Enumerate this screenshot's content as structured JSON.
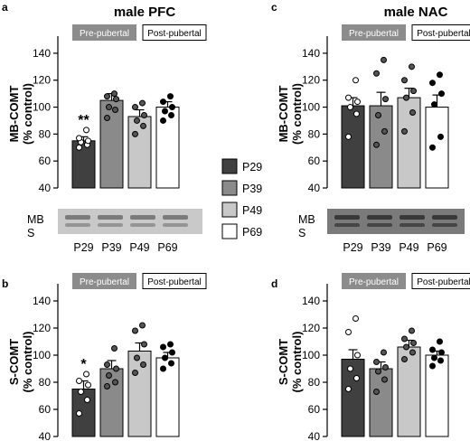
{
  "colors": {
    "P29": "#404040",
    "P39": "#8a8a8a",
    "P49": "#c8c8c8",
    "P69": "#ffffff",
    "axis": "#000000",
    "pre_box": "#8c8c8c",
    "pre_text": "#ffffff",
    "post_box": "#ffffff"
  },
  "legend": {
    "placement": "center, between the left and right panel columns",
    "items": [
      "P29",
      "P39",
      "P49",
      "P69"
    ]
  },
  "blot": {
    "band_labels": [
      "MB",
      "S"
    ],
    "lanes": [
      "P29",
      "P39",
      "P49",
      "P69"
    ]
  },
  "chart_data": [
    {
      "type": "bar",
      "panel": "a",
      "title": "male PFC",
      "ylabel": "MB-COMT\n(% control)",
      "xlabel": "",
      "ylim": [
        40,
        150
      ],
      "yticks": [
        40,
        60,
        80,
        100,
        120,
        140
      ],
      "categories": [
        "P29",
        "P39",
        "P49",
        "P69"
      ],
      "values": [
        75,
        105,
        93,
        100
      ],
      "errors": [
        3,
        5,
        5,
        4
      ],
      "points": [
        [
          70,
          72,
          74,
          75,
          77,
          83
        ],
        [
          92,
          98,
          100,
          106,
          108,
          110
        ],
        [
          80,
          86,
          90,
          94,
          100,
          103
        ],
        [
          90,
          94,
          97,
          100,
          104,
          108
        ]
      ],
      "boxes": [
        "Pre-pubertal",
        "Post-pubertal"
      ],
      "annotations": [
        {
          "category": "P29",
          "text": "**"
        }
      ],
      "grid": false
    },
    {
      "type": "bar",
      "panel": "c",
      "title": "male NAC",
      "ylabel": "MB-COMT\n(% control)",
      "xlabel": "",
      "ylim": [
        40,
        150
      ],
      "yticks": [
        40,
        60,
        80,
        100,
        120,
        140
      ],
      "categories": [
        "P29",
        "P39",
        "P49",
        "P69"
      ],
      "values": [
        101,
        101,
        107,
        100
      ],
      "errors": [
        6,
        10,
        7,
        9
      ],
      "points": [
        [
          78,
          95,
          100,
          104,
          107,
          120
        ],
        [
          72,
          82,
          94,
          106,
          125,
          135
        ],
        [
          82,
          96,
          107,
          112,
          120,
          130
        ],
        [
          70,
          78,
          102,
          110,
          118,
          124
        ]
      ],
      "boxes": [
        "Pre-pubertal",
        "Post-pubertal"
      ],
      "annotations": [],
      "grid": false
    },
    {
      "type": "bar",
      "panel": "b",
      "title": "",
      "ylabel": "S-COMT\n(% control)",
      "xlabel": "",
      "ylim": [
        40,
        150
      ],
      "yticks": [
        40,
        60,
        80,
        100,
        120,
        140
      ],
      "categories": [
        "P29",
        "P39",
        "P49",
        "P69"
      ],
      "values": [
        75,
        90,
        103,
        98
      ],
      "errors": [
        6,
        6,
        6,
        4
      ],
      "points": [
        [
          57,
          67,
          73,
          78,
          81,
          86
        ],
        [
          77,
          80,
          85,
          90,
          93,
          105
        ],
        [
          87,
          93,
          98,
          108,
          118,
          122
        ],
        [
          90,
          94,
          98,
          102,
          106,
          108
        ]
      ],
      "boxes": [
        "Pre-pubertal",
        "Post-pubertal"
      ],
      "annotations": [
        {
          "category": "P29",
          "text": "*"
        }
      ],
      "grid": false
    },
    {
      "type": "bar",
      "panel": "d",
      "title": "",
      "ylabel": "S-COMT\n(% control)",
      "xlabel": "",
      "ylim": [
        40,
        150
      ],
      "yticks": [
        40,
        60,
        80,
        100,
        120,
        140
      ],
      "categories": [
        "P29",
        "P39",
        "P49",
        "P69"
      ],
      "values": [
        97,
        90,
        106,
        100
      ],
      "errors": [
        7,
        5,
        5,
        3
      ],
      "points": [
        [
          75,
          83,
          90,
          100,
          117,
          127
        ],
        [
          73,
          82,
          88,
          91,
          95,
          102
        ],
        [
          97,
          102,
          106,
          109,
          112,
          118
        ],
        [
          92,
          96,
          98,
          102,
          104,
          110
        ]
      ],
      "boxes": [
        "Pre-pubertal",
        "Post-pubertal"
      ],
      "annotations": [],
      "grid": false
    }
  ]
}
